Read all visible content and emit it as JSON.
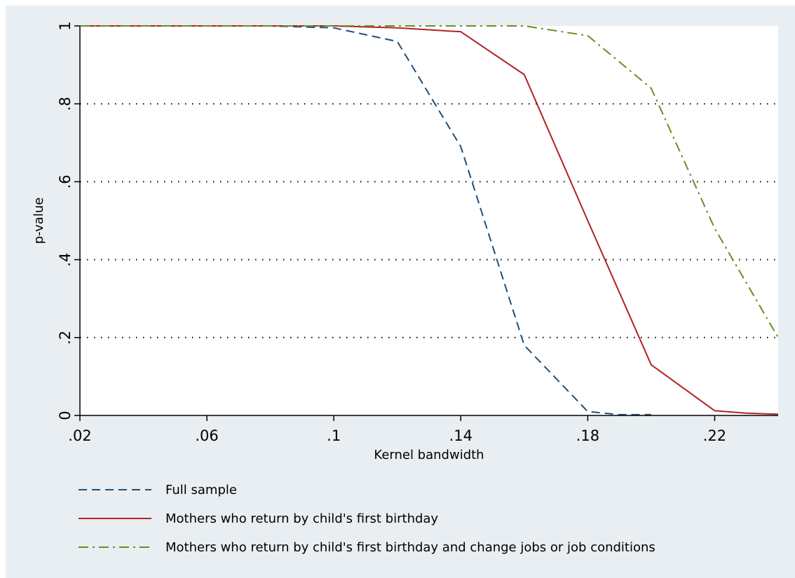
{
  "chart_data": {
    "type": "line",
    "xlabel": "Kernel bandwidth",
    "ylabel": "p-value",
    "xlim": [
      0.02,
      0.24
    ],
    "ylim": [
      0,
      1
    ],
    "xticks": [
      {
        "value": 0.02,
        "label": ".02"
      },
      {
        "value": 0.06,
        "label": ".06"
      },
      {
        "value": 0.1,
        "label": ".1"
      },
      {
        "value": 0.14,
        "label": ".14"
      },
      {
        "value": 0.18,
        "label": ".18"
      },
      {
        "value": 0.22,
        "label": ".22"
      }
    ],
    "yticks": [
      {
        "value": 0,
        "label": "0"
      },
      {
        "value": 0.2,
        "label": ".2"
      },
      {
        "value": 0.4,
        "label": ".4"
      },
      {
        "value": 0.6,
        "label": ".6"
      },
      {
        "value": 0.8,
        "label": ".8"
      },
      {
        "value": 1,
        "label": "1"
      }
    ],
    "grid": "horizontal dotted",
    "legend_position": "bottom",
    "series": [
      {
        "name": "Full sample",
        "color": "#1f4e79",
        "style": "dash",
        "x": [
          0.02,
          0.04,
          0.06,
          0.08,
          0.1,
          0.12,
          0.14,
          0.16,
          0.18,
          0.19,
          0.2
        ],
        "y": [
          1.0,
          1.0,
          1.0,
          1.0,
          0.995,
          0.96,
          0.69,
          0.18,
          0.01,
          0.002,
          0.002
        ]
      },
      {
        "name": "Mothers who return by child's first birthday",
        "color": "#b22222",
        "style": "solid",
        "x": [
          0.02,
          0.04,
          0.06,
          0.08,
          0.1,
          0.12,
          0.14,
          0.16,
          0.18,
          0.2,
          0.22,
          0.23,
          0.24
        ],
        "y": [
          1.0,
          1.0,
          1.0,
          1.0,
          1.0,
          0.995,
          0.985,
          0.875,
          0.5,
          0.13,
          0.012,
          0.006,
          0.003
        ]
      },
      {
        "name": "Mothers who return by child's first birthday and change jobs or job conditions",
        "color": "#6b8e23",
        "style": "dashdot",
        "x": [
          0.02,
          0.04,
          0.06,
          0.08,
          0.1,
          0.12,
          0.14,
          0.16,
          0.18,
          0.2,
          0.22,
          0.24
        ],
        "y": [
          1.0,
          1.0,
          1.0,
          1.0,
          1.0,
          1.0,
          1.0,
          1.0,
          0.975,
          0.84,
          0.48,
          0.2
        ]
      }
    ]
  }
}
